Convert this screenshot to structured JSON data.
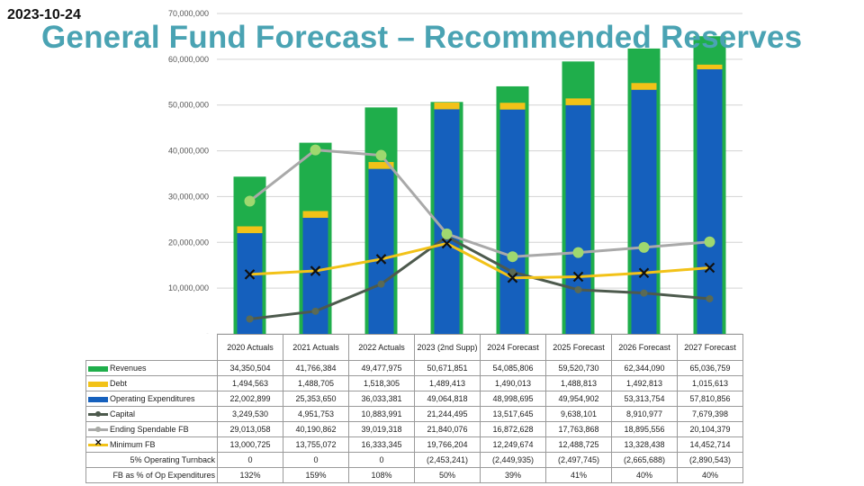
{
  "date": "2023-10-24",
  "title": "General Fund Forecast – Recommended Reserves",
  "chart_data": {
    "type": "bar",
    "categories": [
      "2020 Actuals",
      "2021 Actuals",
      "2022 Actuals",
      "2023 (2nd Supp)",
      "2024 Forecast",
      "2025 Forecast",
      "2026 Forecast",
      "2027 Forecast"
    ],
    "ylim": [
      0,
      70000000
    ],
    "yticks": [
      "70,000,000",
      "60,000,000",
      "50,000,000",
      "40,000,000",
      "30,000,000",
      "20,000,000",
      "10,000,000",
      "-"
    ],
    "grid": true,
    "series": [
      {
        "name": "Revenues",
        "kind": "bar",
        "color": "#1fae4b",
        "values": [
          34350504,
          41766384,
          49477975,
          50671851,
          54085806,
          59520730,
          62344090,
          65036759
        ],
        "display": [
          "34,350,504",
          "41,766,384",
          "49,477,975",
          "50,671,851",
          "54,085,806",
          "59,520,730",
          "62,344,090",
          "65,036,759"
        ]
      },
      {
        "name": "Debt",
        "kind": "bar",
        "color": "#f2c218",
        "values": [
          1494563,
          1488705,
          1518305,
          1489413,
          1490013,
          1488813,
          1492813,
          1015613
        ],
        "display": [
          "1,494,563",
          "1,488,705",
          "1,518,305",
          "1,489,413",
          "1,490,013",
          "1,488,813",
          "1,492,813",
          "1,015,613"
        ]
      },
      {
        "name": "Operating Expenditures",
        "kind": "bar",
        "color": "#1560bd",
        "values": [
          22002899,
          25353650,
          36033381,
          49064818,
          48998695,
          49954902,
          53313754,
          57810856
        ],
        "display": [
          "22,002,899",
          "25,353,650",
          "36,033,381",
          "49,064,818",
          "48,998,695",
          "49,954,902",
          "53,313,754",
          "57,810,856"
        ]
      },
      {
        "name": "Capital",
        "kind": "line",
        "color": "#4d5a4d",
        "values": [
          3249530,
          4951753,
          10883991,
          21244495,
          13517645,
          9638101,
          8910977,
          7679398
        ],
        "display": [
          "3,249,530",
          "4,951,753",
          "10,883,991",
          "21,244,495",
          "13,517,645",
          "9,638,101",
          "8,910,977",
          "7,679,398"
        ]
      },
      {
        "name": "Ending Spendable FB",
        "kind": "line",
        "color": "#a9a9a9",
        "values": [
          29013058,
          40190862,
          39019318,
          21840076,
          16872628,
          17763868,
          18895556,
          20104379
        ],
        "display": [
          "29,013,058",
          "40,190,862",
          "39,019,318",
          "21,840,076",
          "16,872,628",
          "17,763,868",
          "18,895,556",
          "20,104,379"
        ]
      },
      {
        "name": "Minimum FB",
        "kind": "line",
        "color": "#f2c218",
        "values": [
          13000725,
          13755072,
          16333345,
          19766204,
          12249674,
          12488725,
          13328438,
          14452714
        ],
        "display": [
          "13,000,725",
          "13,755,072",
          "16,333,345",
          "19,766,204",
          "12,249,674",
          "12,488,725",
          "13,328,438",
          "14,452,714"
        ]
      }
    ],
    "extra_rows": [
      {
        "label": "5% Operating Turnback",
        "display": [
          "0",
          "0",
          "0",
          "(2,453,241)",
          "(2,449,935)",
          "(2,497,745)",
          "(2,665,688)",
          "(2,890,543)"
        ]
      },
      {
        "label": "FB as % of Op Expenditures",
        "display": [
          "132%",
          "159%",
          "108%",
          "50%",
          "39%",
          "41%",
          "40%",
          "40%"
        ]
      }
    ]
  }
}
